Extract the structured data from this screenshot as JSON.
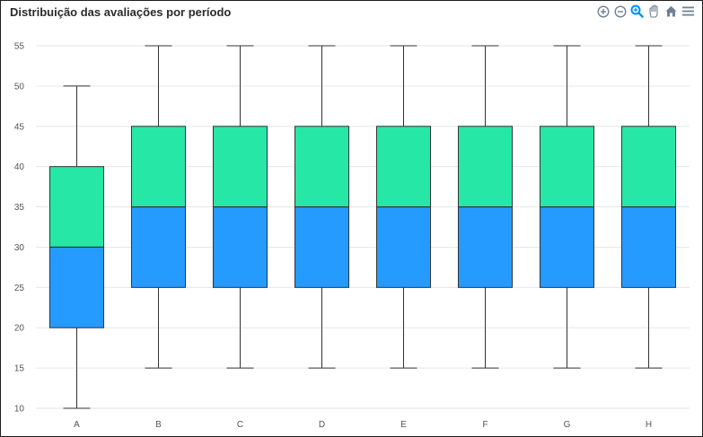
{
  "title": "Distribuição das avaliações por período",
  "toolbar": {
    "icons": [
      "zoom-in-icon",
      "zoom-out-icon",
      "selection-zoom-icon",
      "pan-icon",
      "home-icon",
      "menu-icon"
    ],
    "accent": "#008ffb",
    "inactive": "#6e8192"
  },
  "chart_data": {
    "type": "boxplot",
    "categories": [
      "A",
      "B",
      "C",
      "D",
      "E",
      "F",
      "G",
      "H"
    ],
    "boxes": [
      {
        "min": 10,
        "q1": 20,
        "median": 30,
        "q3": 40,
        "max": 50
      },
      {
        "min": 15,
        "q1": 25,
        "median": 35,
        "q3": 45,
        "max": 55
      },
      {
        "min": 15,
        "q1": 25,
        "median": 35,
        "q3": 45,
        "max": 55
      },
      {
        "min": 15,
        "q1": 25,
        "median": 35,
        "q3": 45,
        "max": 55
      },
      {
        "min": 15,
        "q1": 25,
        "median": 35,
        "q3": 45,
        "max": 55
      },
      {
        "min": 15,
        "q1": 25,
        "median": 35,
        "q3": 45,
        "max": 55
      },
      {
        "min": 15,
        "q1": 25,
        "median": 35,
        "q3": 45,
        "max": 55
      },
      {
        "min": 15,
        "q1": 25,
        "median": 35,
        "q3": 45,
        "max": 55
      }
    ],
    "ylim": [
      10,
      55
    ],
    "yticks": [
      10,
      15,
      20,
      25,
      30,
      35,
      40,
      45,
      50,
      55
    ],
    "grid": true,
    "colors": {
      "lower": "#259bff",
      "upper": "#26e7a6",
      "stroke": "#333333",
      "grid": "#e6e6e6"
    }
  }
}
